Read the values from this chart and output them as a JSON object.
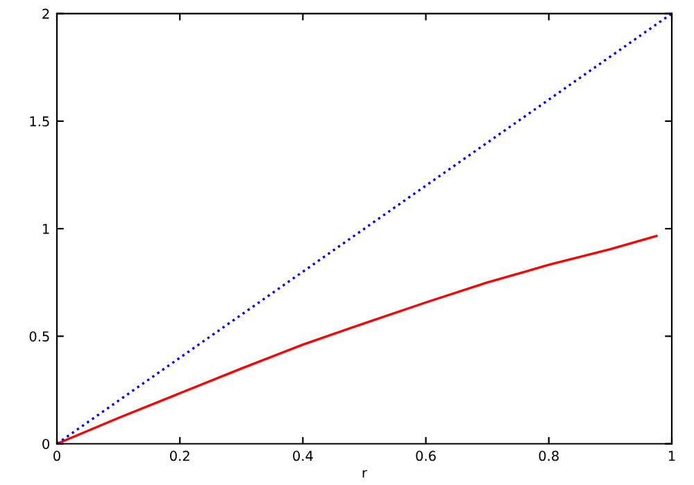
{
  "chart_data": {
    "type": "line",
    "xlabel": "r",
    "series": [
      {
        "color": "#ff0000",
        "line_style": "solid",
        "x": [
          0,
          0.1,
          0.2,
          0.3,
          0.4,
          0.5,
          0.6,
          0.7,
          0.8,
          0.9,
          0.975
        ],
        "values": [
          0,
          0.12,
          0.235,
          0.35,
          0.461,
          0.56,
          0.657,
          0.75,
          0.832,
          0.905,
          0.966
        ]
      },
      {
        "color": "#0000ff",
        "line_style": "dotted",
        "x": [
          0,
          1
        ],
        "values": [
          0,
          2
        ]
      }
    ],
    "xlim": [
      0,
      1
    ],
    "ylim": [
      0,
      2
    ],
    "xticks": [
      0,
      0.2,
      0.4,
      0.6,
      0.8,
      1
    ],
    "yticks": [
      0,
      0.5,
      1,
      1.5,
      2
    ],
    "grid": false
  }
}
